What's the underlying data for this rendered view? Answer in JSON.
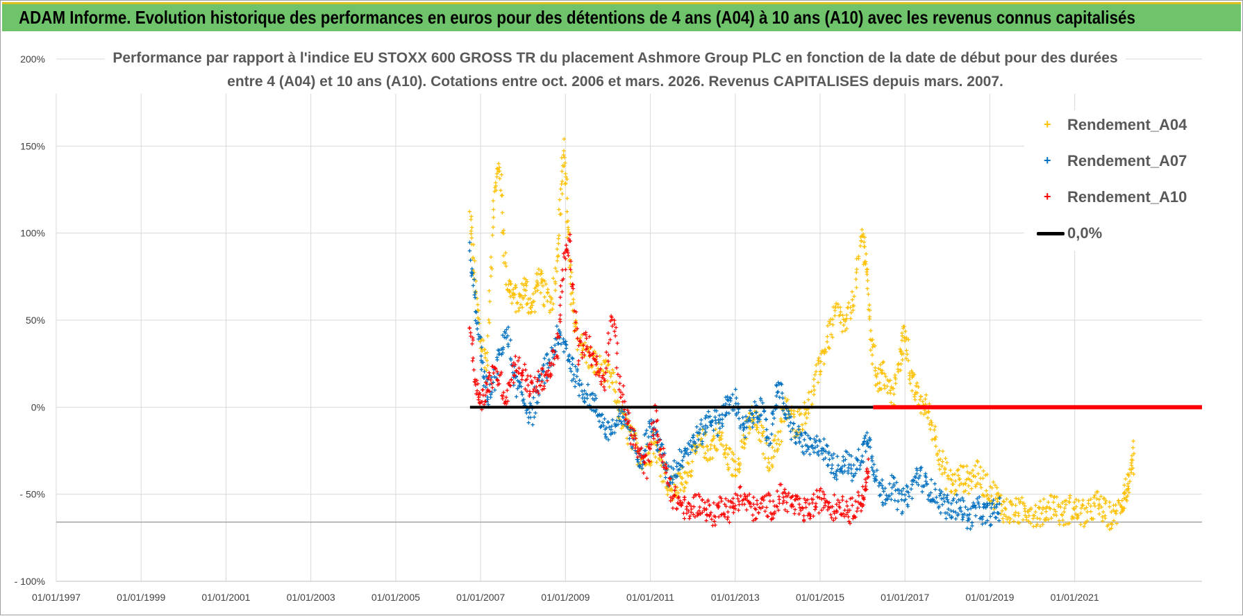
{
  "banner": {
    "title": "ADAM Informe. Evolution historique des performances en euros pour des détentions de 4 ans (A04) à 10 ans (A10) avec les revenus connus capitalisés"
  },
  "colors": {
    "a04": "#ffc000",
    "a07": "#0070c0",
    "a10": "#ff0000",
    "zero": "#000000",
    "banner": "#6fc36a"
  },
  "chart_data": {
    "type": "scatter",
    "title_line1": "Performance par rapport à l'indice EU STOXX 600 GROSS TR  du placement Ashmore Group PLC en fonction de la date de début pour des durées",
    "title_line2": "entre 4 (A04) et 10 ans (A10). Cotations entre oct. 2006 et mars. 2026. Revenus CAPITALISES depuis mars. 2007.",
    "xlim": [
      1997.0,
      2024.0
    ],
    "ylim": [
      -100,
      200
    ],
    "x_ticks": [
      1997,
      1999,
      2001,
      2003,
      2005,
      2007,
      2009,
      2011,
      2013,
      2015,
      2017,
      2019,
      2021
    ],
    "x_tick_labels": [
      "01/01/1997",
      "01/01/1999",
      "01/01/2001",
      "01/01/2003",
      "01/01/2005",
      "01/01/2007",
      "01/01/2009",
      "01/01/2011",
      "01/01/2013",
      "01/01/2015",
      "01/01/2017",
      "01/01/2019",
      "01/01/2021"
    ],
    "y_ticks": [
      -100,
      -50,
      0,
      50,
      100,
      150,
      200
    ],
    "y_tick_labels": [
      "- 100%",
      "- 50%",
      "0%",
      "50%",
      "100%",
      "150%",
      "200%"
    ],
    "extra_hline": -66,
    "legend": [
      "Rendement_A04",
      "Rendement_A07",
      "Rendement_A10",
      "0,0%"
    ],
    "series": [
      {
        "name": "Rendement_A04",
        "x": [
          2006.75,
          2006.85,
          2007.0,
          2007.15,
          2007.3,
          2007.45,
          2007.6,
          2007.75,
          2007.9,
          2008.05,
          2008.2,
          2008.35,
          2008.5,
          2008.7,
          2008.85,
          2008.95,
          2009.05,
          2009.15,
          2009.3,
          2009.5,
          2009.7,
          2009.9,
          2010.1,
          2010.3,
          2010.5,
          2010.7,
          2010.9,
          2011.1,
          2011.3,
          2011.5,
          2011.65,
          2011.8,
          2012.0,
          2012.2,
          2012.4,
          2012.6,
          2012.8,
          2013.0,
          2013.2,
          2013.4,
          2013.6,
          2013.8,
          2014.0,
          2014.2,
          2014.4,
          2014.6,
          2014.8,
          2015.0,
          2015.2,
          2015.4,
          2015.6,
          2015.8,
          2016.0,
          2016.1,
          2016.2,
          2016.35,
          2016.5,
          2016.7,
          2016.9,
          2017.0,
          2017.15,
          2017.3,
          2017.5,
          2017.7,
          2017.9,
          2018.1,
          2018.3,
          2018.5,
          2018.7,
          2018.9,
          2019.1,
          2019.3,
          2019.5,
          2019.7,
          2019.9,
          2020.1,
          2020.3,
          2020.5,
          2020.7,
          2020.9,
          2021.1,
          2021.3,
          2021.5,
          2021.7,
          2021.9,
          2022.1,
          2022.2,
          2022.3,
          2022.4
        ],
        "y": [
          110,
          75,
          40,
          25,
          120,
          140,
          75,
          65,
          60,
          70,
          55,
          75,
          65,
          60,
          100,
          150,
          110,
          60,
          40,
          30,
          25,
          20,
          15,
          -5,
          -15,
          -25,
          -30,
          -20,
          -35,
          -48,
          -45,
          -40,
          -30,
          -20,
          -25,
          -15,
          -28,
          -35,
          -20,
          -5,
          -15,
          -30,
          -20,
          0,
          -10,
          -5,
          5,
          25,
          40,
          55,
          45,
          65,
          100,
          80,
          40,
          15,
          20,
          5,
          30,
          45,
          15,
          5,
          0,
          -15,
          -35,
          -45,
          -40,
          -42,
          -38,
          -45,
          -50,
          -58,
          -60,
          -60,
          -58,
          -62,
          -60,
          -55,
          -62,
          -58,
          -60,
          -62,
          -55,
          -60,
          -64,
          -55,
          -48,
          -45,
          -25
        ],
        "jitter": 8
      },
      {
        "name": "Rendement_A07",
        "x": [
          2006.75,
          2006.9,
          2007.05,
          2007.2,
          2007.4,
          2007.6,
          2007.8,
          2008.0,
          2008.2,
          2008.4,
          2008.6,
          2008.8,
          2009.0,
          2009.2,
          2009.4,
          2009.6,
          2009.8,
          2010.0,
          2010.2,
          2010.4,
          2010.6,
          2010.8,
          2011.0,
          2011.2,
          2011.4,
          2011.6,
          2011.8,
          2012.0,
          2012.2,
          2012.4,
          2012.6,
          2012.8,
          2013.0,
          2013.2,
          2013.4,
          2013.6,
          2013.8,
          2014.0,
          2014.2,
          2014.4,
          2014.6,
          2014.8,
          2015.0,
          2015.2,
          2015.4,
          2015.6,
          2015.8,
          2016.0,
          2016.15,
          2016.3,
          2016.5,
          2016.7,
          2016.9,
          2017.1,
          2017.3,
          2017.5,
          2017.7,
          2017.9,
          2018.1,
          2018.3,
          2018.5,
          2018.7,
          2018.9,
          2019.1,
          2019.25
        ],
        "y": [
          88,
          55,
          20,
          5,
          25,
          45,
          15,
          5,
          -5,
          15,
          25,
          40,
          35,
          20,
          10,
          5,
          -5,
          -15,
          -10,
          -5,
          -20,
          -30,
          -10,
          -20,
          -40,
          -35,
          -25,
          -20,
          -15,
          -5,
          -10,
          0,
          5,
          -15,
          -5,
          0,
          -20,
          15,
          -5,
          -15,
          -20,
          -25,
          -20,
          -30,
          -35,
          -30,
          -38,
          -25,
          -15,
          -40,
          -50,
          -45,
          -55,
          -50,
          -38,
          -45,
          -50,
          -55,
          -60,
          -55,
          -65,
          -58,
          -62,
          -60,
          -58
        ],
        "jitter": 7
      },
      {
        "name": "Rendement_A10",
        "x": [
          2006.75,
          2006.9,
          2007.05,
          2007.2,
          2007.4,
          2007.6,
          2007.8,
          2008.0,
          2008.2,
          2008.4,
          2008.6,
          2008.8,
          2008.95,
          2009.1,
          2009.3,
          2009.5,
          2009.7,
          2009.9,
          2010.1,
          2010.3,
          2010.5,
          2010.7,
          2010.9,
          2011.1,
          2011.3,
          2011.5,
          2011.7,
          2011.9,
          2012.1,
          2012.3,
          2012.5,
          2012.7,
          2012.9,
          2013.1,
          2013.3,
          2013.5,
          2013.7,
          2013.9,
          2014.1,
          2014.3,
          2014.5,
          2014.7,
          2014.9,
          2015.1,
          2015.3,
          2015.5,
          2015.7,
          2015.9,
          2016.05,
          2016.15
        ],
        "y": [
          50,
          10,
          5,
          15,
          20,
          5,
          25,
          20,
          10,
          15,
          20,
          30,
          80,
          95,
          30,
          40,
          25,
          15,
          55,
          10,
          -10,
          -25,
          -35,
          -5,
          -30,
          -50,
          -55,
          -60,
          -55,
          -58,
          -62,
          -55,
          -60,
          -50,
          -55,
          -60,
          -55,
          -58,
          -50,
          -55,
          -58,
          -60,
          -55,
          -52,
          -58,
          -55,
          -60,
          -55,
          -50,
          -35
        ],
        "jitter": 7
      }
    ],
    "zero_line": [
      {
        "x0": 2006.75,
        "x1": 2016.25,
        "color": "black"
      },
      {
        "x0": 2016.25,
        "x1": 2024.0,
        "color": "red"
      }
    ]
  }
}
